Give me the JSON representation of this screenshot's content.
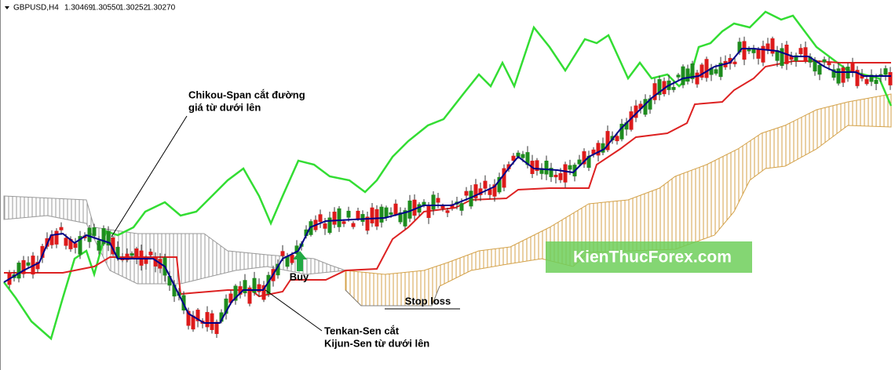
{
  "header": {
    "symbol": "GBPUSD,H4",
    "ohlc": [
      "1.30469",
      "1.30550",
      "1.30252",
      "1.30270"
    ]
  },
  "annotations": {
    "chikou": [
      "Chikou-Span cắt đường",
      "giá từ dưới lên"
    ],
    "tenkan": [
      "Tenkan-Sen cắt",
      "Kijun-Sen từ dưới lên"
    ],
    "buy": "Buy",
    "stop_loss": "Stop loss"
  },
  "watermark": "KienThucForex.com"
}
